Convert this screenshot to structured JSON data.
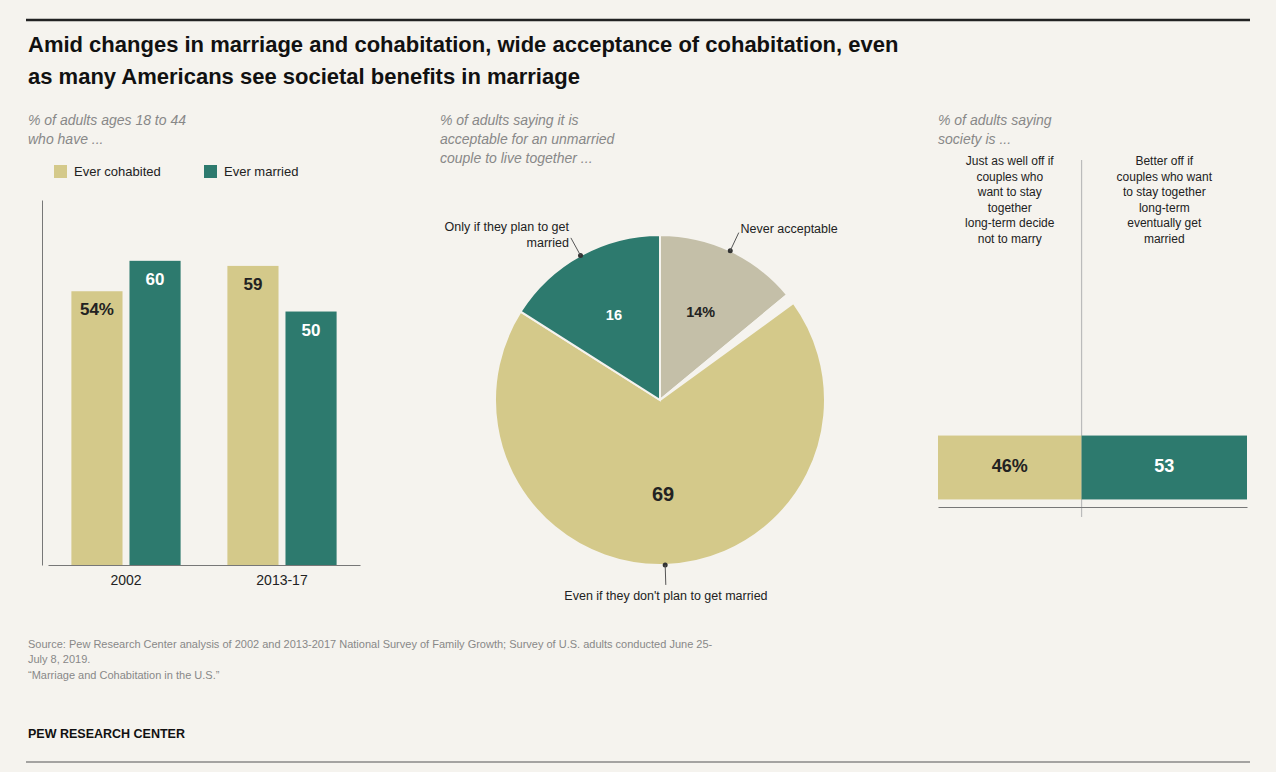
{
  "title": "Amid changes in marriage and cohabitation, wide acceptance of cohabitation, even\nas many Americans see societal benefits in marriage",
  "source": "Source: Pew Research Center analysis of 2002 and 2013-2017 National Survey of Family Growth; Survey of U.S. adults conducted June 25-\nJuly 8, 2019.\n“Marriage and Cohabitation in the U.S.”",
  "footer": "PEW RESEARCH CENTER",
  "chart_data": [
    {
      "type": "bar",
      "subtitle": "% of adults ages 18 to 44\nwho have ...",
      "categories": [
        "2002",
        "2013-17"
      ],
      "series": [
        {
          "name": "Ever cohabited",
          "color": "#d4c98a",
          "values": [
            54,
            59
          ],
          "value_labels": [
            "54%",
            "59"
          ]
        },
        {
          "name": "Ever married",
          "color": "#2d7a6e",
          "values": [
            60,
            50
          ]
        }
      ],
      "ylim": [
        0,
        72
      ],
      "tick_labels": "x",
      "data_labels": true,
      "legend": "top"
    },
    {
      "type": "pie",
      "subtitle": "% of adults saying it is\nacceptable for an unmarried\ncouple to live together ...",
      "categories": [
        "Never acceptable",
        null,
        "Even if they don't plan to get married",
        "Only if they plan to get\nmarried"
      ],
      "values": [
        14,
        1,
        69,
        16
      ],
      "value_labels": [
        "14%",
        null,
        "69",
        "16"
      ],
      "colors": [
        "#c4bfa8",
        "#f5f3ee",
        "#d4c98a",
        "#2d7a6e"
      ],
      "data_labels": true
    },
    {
      "type": "bar",
      "orientation": "horizontal",
      "stacked": true,
      "subtitle": "% of adults saying\nsociety is ...",
      "categories": [
        null
      ],
      "series": [
        {
          "name": "Just as well off if\ncouples who\nwant to stay\ntogether\nlong-term decide\nnot to marry",
          "color": "#d4c98a",
          "values": [
            46
          ],
          "value_labels": [
            "46%"
          ]
        },
        {
          "name": "Better off if\ncouples who want\nto stay together\nlong-term\neventually get\nmarried",
          "color": "#2d7a6e",
          "values": [
            53
          ]
        }
      ],
      "xlim": [
        0,
        99
      ],
      "tick_labels": false,
      "data_labels": true,
      "legend": "top"
    }
  ]
}
